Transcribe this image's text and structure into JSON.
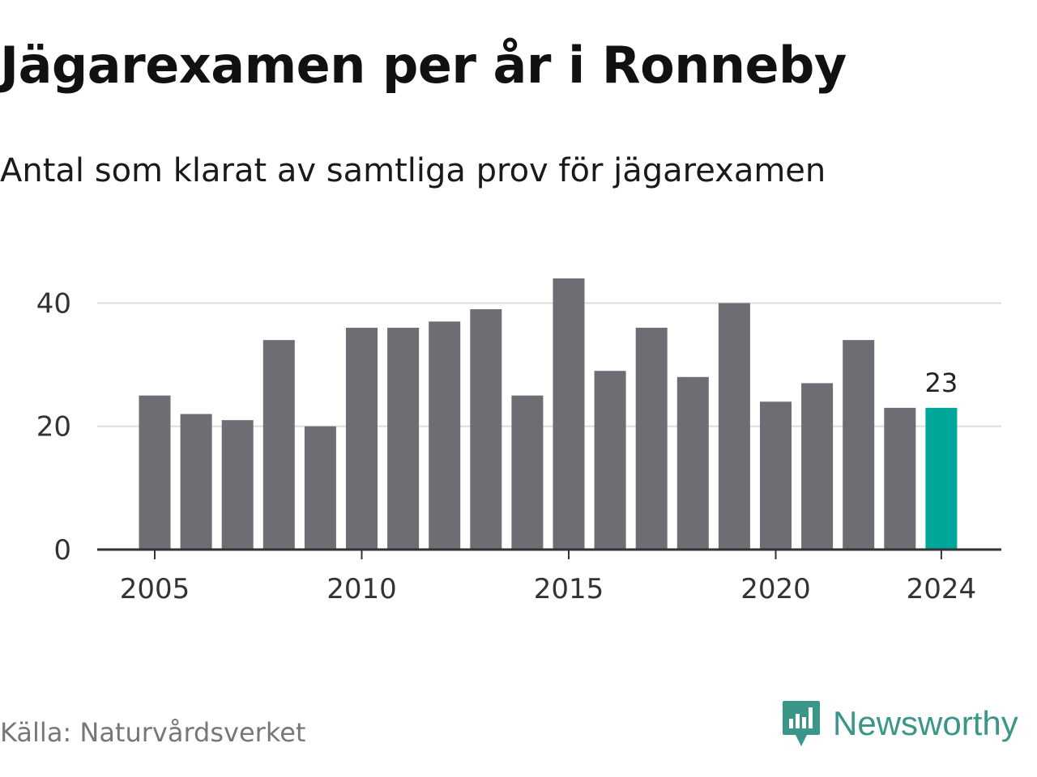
{
  "title": "Jägarexamen per år i Ronneby",
  "subtitle": "Antal som klarat av samtliga prov för jägarexamen",
  "source": "Källa: Naturvårdsverket",
  "brand": {
    "name": "Newsworthy",
    "icon": "newsworthy-logo-icon",
    "color": "#3a9688"
  },
  "colors": {
    "bar": "#6e6d73",
    "highlight": "#00a69a",
    "grid": "#dddddd",
    "axis": "#333333"
  },
  "chart_data": {
    "type": "bar",
    "title": "Jägarexamen per år i Ronneby",
    "subtitle": "Antal som klarat av samtliga prov för jägarexamen",
    "xlabel": "",
    "ylabel": "",
    "categories": [
      2005,
      2006,
      2007,
      2008,
      2009,
      2010,
      2011,
      2012,
      2013,
      2014,
      2015,
      2016,
      2017,
      2018,
      2019,
      2020,
      2021,
      2022,
      2023,
      2024
    ],
    "values": [
      25,
      22,
      21,
      34,
      20,
      36,
      36,
      37,
      39,
      25,
      44,
      29,
      36,
      28,
      40,
      24,
      27,
      34,
      23,
      23
    ],
    "ylim": [
      0,
      44
    ],
    "yticks": [
      0,
      20,
      40
    ],
    "xticks": [
      2005,
      2010,
      2015,
      2020,
      2024
    ],
    "highlight": {
      "category": 2024,
      "label": "23"
    },
    "grid": "horizontal",
    "legend": "none"
  }
}
